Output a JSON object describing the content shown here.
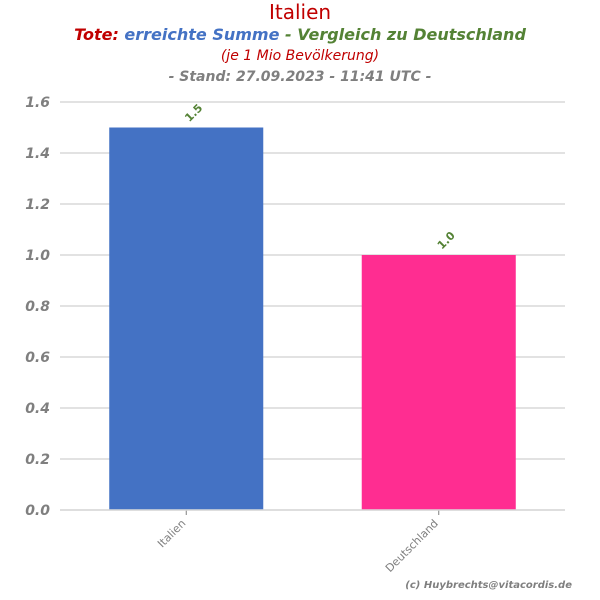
{
  "header": {
    "title": "Italien",
    "subtitle_part1": "Tote:",
    "subtitle_part2": "erreichte Summe",
    "subtitle_part3": "- Vergleich zu Deutschland",
    "subtitle_line2": "(je 1 Mio Bevölkerung)",
    "subtitle_line3": "- Stand: 27.09.2023 - 11:41 UTC -",
    "credit": "(c) Huybrechts@vitacordis.de"
  },
  "colors": {
    "title": "#c00000",
    "subtitle_part1": "#c00000",
    "subtitle_part2": "#4472c4",
    "subtitle_part3": "#548235",
    "subtitle_line2": "#c00000",
    "subtitle_line3": "#7f7f7f",
    "axis_text": "#7f7f7f",
    "grid": "#d9d9d9",
    "data_label": "#548235"
  },
  "chart_data": {
    "type": "bar",
    "categories": [
      "Italien",
      "Deutschland"
    ],
    "values": [
      1.5,
      1.0
    ],
    "value_labels": [
      "1.5",
      "1.0"
    ],
    "bar_colors": [
      "#4472c4",
      "#ff2d91"
    ],
    "ylim": [
      0,
      1.6
    ],
    "yticks": [
      0.0,
      0.2,
      0.4,
      0.6,
      0.8,
      1.0,
      1.2,
      1.4,
      1.6
    ],
    "ytick_labels": [
      "0.0",
      "0.2",
      "0.4",
      "0.6",
      "0.8",
      "1.0",
      "1.2",
      "1.4",
      "1.6"
    ],
    "grid": true,
    "title": "Italien",
    "xlabel": "",
    "ylabel": ""
  }
}
